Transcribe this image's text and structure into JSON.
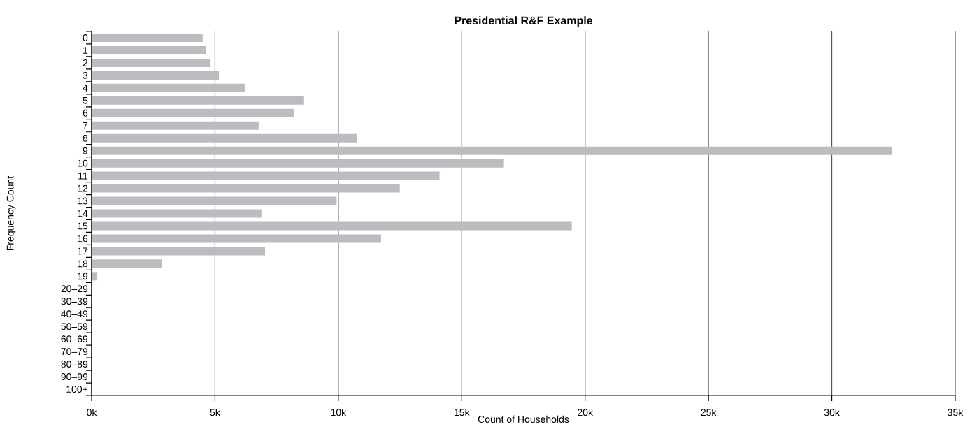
{
  "chart_data": {
    "type": "bar",
    "orientation": "horizontal",
    "title": "Presidential R&F Example",
    "xlabel": "Count of Households",
    "ylabel": "Frequency Count",
    "categories": [
      "0",
      "1",
      "2",
      "3",
      "4",
      "5",
      "6",
      "7",
      "8",
      "9",
      "10",
      "11",
      "12",
      "13",
      "14",
      "15",
      "16",
      "17",
      "18",
      "19",
      "20–29",
      "30–39",
      "40–49",
      "50–59",
      "60–69",
      "70–79",
      "80–89",
      "90–99",
      "100+"
    ],
    "values": [
      4500,
      4650,
      4820,
      5160,
      6230,
      8610,
      8210,
      6770,
      10760,
      32440,
      16710,
      14100,
      12490,
      9930,
      6880,
      19460,
      11730,
      7030,
      2860,
      230,
      0,
      0,
      0,
      0,
      0,
      0,
      0,
      0,
      0
    ],
    "color": "#bbbcc0",
    "xlim": [
      0,
      35000
    ],
    "xticks": [
      {
        "value": 0,
        "label": "0k"
      },
      {
        "value": 5000,
        "label": "5k"
      },
      {
        "value": 10000,
        "label": "10k"
      },
      {
        "value": 15000,
        "label": "15k"
      },
      {
        "value": 20000,
        "label": "20k"
      },
      {
        "value": 25000,
        "label": "25k"
      },
      {
        "value": 30000,
        "label": "30k"
      },
      {
        "value": 35000,
        "label": "35k"
      }
    ],
    "grid": "x"
  }
}
